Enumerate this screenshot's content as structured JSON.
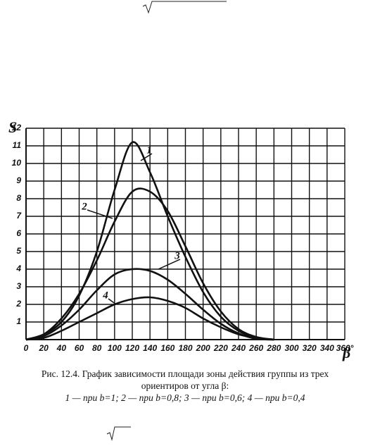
{
  "chart_data": {
    "type": "line",
    "y_label": "S",
    "x_label": "β",
    "x": [
      0,
      20,
      40,
      60,
      80,
      100,
      120,
      140,
      160,
      180,
      200,
      220,
      240,
      260,
      280
    ],
    "series": [
      {
        "name": "1",
        "color": "#111111",
        "values": [
          0,
          0.3,
          1.0,
          2.5,
          5.0,
          8.5,
          11.2,
          9.5,
          7.0,
          4.7,
          2.7,
          1.3,
          0.5,
          0.1,
          0
        ]
      },
      {
        "name": "2",
        "color": "#111111",
        "values": [
          0,
          0.3,
          1.2,
          2.6,
          4.5,
          6.7,
          8.4,
          8.4,
          7.3,
          5.3,
          3.2,
          1.6,
          0.6,
          0.15,
          0
        ]
      },
      {
        "name": "3",
        "color": "#111111",
        "values": [
          0,
          0.2,
          0.8,
          1.7,
          2.8,
          3.7,
          4.0,
          3.9,
          3.4,
          2.6,
          1.7,
          0.9,
          0.35,
          0.05,
          0
        ]
      },
      {
        "name": "4",
        "color": "#111111",
        "values": [
          0,
          0.1,
          0.5,
          1.0,
          1.5,
          2.0,
          2.3,
          2.4,
          2.2,
          1.8,
          1.2,
          0.7,
          0.3,
          0.1,
          0
        ]
      }
    ],
    "xlim": [
      0,
      360
    ],
    "xticks": [
      0,
      20,
      40,
      60,
      80,
      100,
      120,
      140,
      160,
      180,
      200,
      220,
      240,
      260,
      280,
      300,
      320,
      340,
      {
        "value": 360,
        "label": "360°"
      }
    ],
    "ylim": [
      0,
      12
    ],
    "yticks": [
      1,
      2,
      3,
      4,
      5,
      6,
      7,
      8,
      9,
      10,
      11,
      12
    ],
    "grid": true,
    "caption": [
      "Рис. 12.4. График зависимости площади зоны действия группы из трех",
      "ориентиров от угла β:",
      "1 — при b=1; 2 — при b=0,8; 3 — при b=0,6; 4 — при b=0,4"
    ]
  }
}
